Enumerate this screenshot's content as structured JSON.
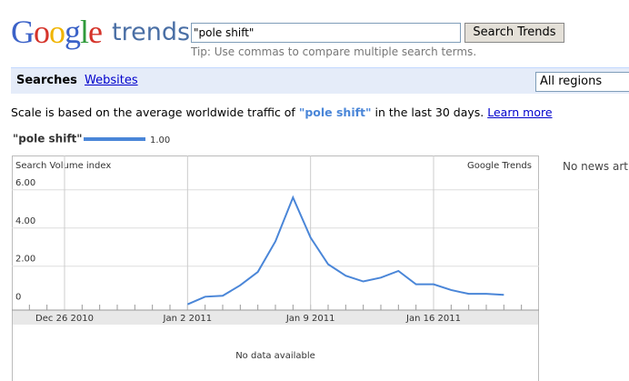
{
  "header": {
    "logo": "Google",
    "product": "trends",
    "search_query": "\"pole shift\"",
    "search_button": "Search Trends",
    "tip": "Tip: Use commas to compare multiple search terms."
  },
  "tabs": [
    "Searches",
    "Websites"
  ],
  "region": "All regions",
  "scale_note": {
    "prefix": "Scale is based on the average worldwide traffic of ",
    "term": "\"pole shift\"",
    "suffix": " in the last 30 days.",
    "link": "Learn more"
  },
  "chart_data": {
    "type": "line",
    "y_label": "Search Volume index",
    "watermark": "Google Trends",
    "x": [
      "2011-01-02",
      "2011-01-03",
      "2011-01-04",
      "2011-01-05",
      "2011-01-06",
      "2011-01-07",
      "2011-01-08",
      "2011-01-09",
      "2011-01-10",
      "2011-01-11",
      "2011-01-12",
      "2011-01-13",
      "2011-01-14",
      "2011-01-15",
      "2011-01-16",
      "2011-01-17",
      "2011-01-18",
      "2011-01-19",
      "2011-01-20"
    ],
    "series": [
      {
        "name": "\"pole shift\"",
        "color": "#4a86d8",
        "legend_average": "1.00",
        "values": [
          0,
          0.4,
          0.45,
          1.0,
          1.7,
          3.3,
          5.6,
          3.5,
          2.1,
          1.5,
          1.2,
          1.4,
          1.75,
          1.05,
          1.05,
          0.75,
          0.55,
          0.55,
          0.5
        ]
      }
    ],
    "xlim": [
      "2010-12-23",
      "2011-01-22"
    ],
    "xticks": [
      {
        "value": "2010-12-26",
        "label": "Dec 26 2010"
      },
      {
        "value": "2011-01-02",
        "label": "Jan 2 2011"
      },
      {
        "value": "2011-01-09",
        "label": "Jan 9 2011"
      },
      {
        "value": "2011-01-16",
        "label": "Jan 16 2011"
      }
    ],
    "ylim": [
      -0.3,
      7.8
    ],
    "yticks": [
      0,
      {
        "value": 2,
        "label": "2.00"
      },
      {
        "value": 4,
        "label": "4.00"
      },
      {
        "value": 6,
        "label": "6.00"
      }
    ],
    "grid": true
  },
  "no_data": "No data available",
  "news": "No news arti"
}
